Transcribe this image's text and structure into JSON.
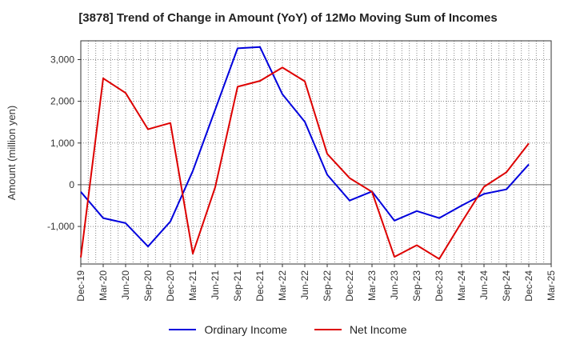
{
  "chart_data": {
    "type": "line",
    "title": "[3878]  Trend of Change in Amount (YoY) of 12Mo Moving Sum of Incomes",
    "ylabel": "Amount (million yen)",
    "xlabel": "",
    "ylim": [
      -1900,
      3450
    ],
    "yticks": [
      3000,
      2000,
      1000,
      0,
      -1000
    ],
    "ytick_labels": [
      "3,000",
      "2,000",
      "1,000",
      "0",
      "-1,000"
    ],
    "grid": "on",
    "legend_position": "bottom",
    "x": [
      "Dec-19",
      "Mar-20",
      "Jun-20",
      "Sep-20",
      "Dec-20",
      "Mar-21",
      "Jun-21",
      "Sep-21",
      "Dec-21",
      "Mar-22",
      "Jun-22",
      "Sep-22",
      "Dec-22",
      "Mar-23",
      "Jun-23",
      "Sep-23",
      "Dec-23",
      "Mar-24",
      "Jun-24",
      "Sep-24",
      "Dec-24",
      "Mar-25"
    ],
    "series": [
      {
        "name": "Ordinary Income",
        "color": "#0000dd",
        "values": [
          -170,
          -800,
          -920,
          -1480,
          -880,
          330,
          1800,
          3270,
          3300,
          2170,
          1510,
          240,
          -380,
          -160,
          -860,
          -630,
          -800,
          -500,
          -220,
          -110,
          490,
          null
        ]
      },
      {
        "name": "Net Income",
        "color": "#dd0000",
        "values": [
          -1740,
          2550,
          2200,
          1330,
          1480,
          -1650,
          -60,
          2350,
          2490,
          2810,
          2480,
          740,
          160,
          -170,
          -1730,
          -1450,
          -1780,
          -900,
          -50,
          300,
          990,
          null
        ]
      }
    ]
  }
}
